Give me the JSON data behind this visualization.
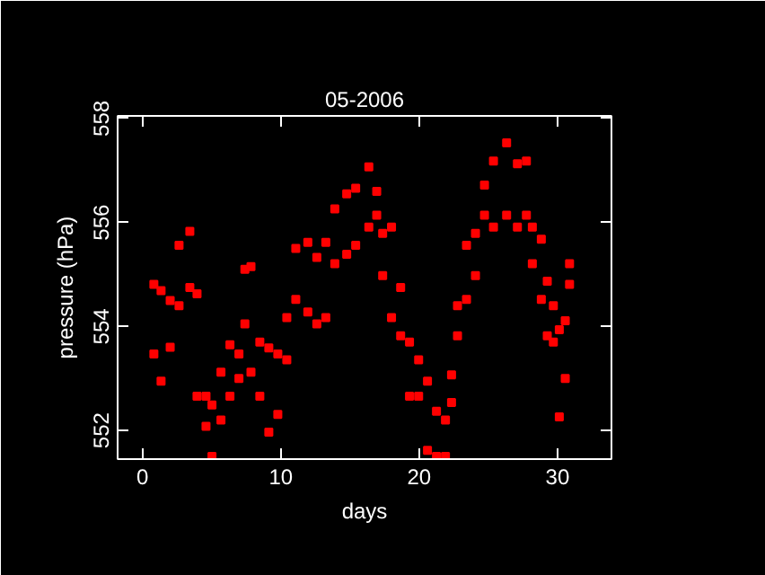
{
  "chart_data": {
    "type": "scatter",
    "title": "05-2006",
    "xlabel": "days",
    "ylabel": "pressure (hPa)",
    "xlim": [
      -1.8,
      33.9
    ],
    "ylim": [
      551.45,
      558.05
    ],
    "xticks": [
      0,
      10,
      20,
      30
    ],
    "yticks": [
      552,
      554,
      556,
      558
    ],
    "grid": false,
    "marker": "square",
    "series": [
      {
        "color": "#ff0000",
        "x": [
          0.82,
          0.82,
          1.34,
          1.34,
          2.0,
          2.0,
          2.64,
          2.64,
          3.42,
          3.42,
          3.94,
          3.94,
          4.59,
          4.59,
          5.02,
          5.02,
          5.67,
          5.67,
          6.32,
          6.32,
          6.97,
          6.97,
          7.4,
          7.4,
          7.84,
          7.84,
          8.48,
          8.48,
          9.13,
          9.13,
          9.78,
          9.78,
          10.43,
          10.43,
          11.08,
          11.08,
          11.95,
          11.95,
          12.6,
          12.6,
          13.25,
          13.25,
          13.9,
          13.9,
          14.76,
          14.76,
          15.41,
          15.41,
          16.36,
          16.36,
          16.93,
          16.93,
          17.36,
          17.36,
          18.0,
          18.0,
          18.66,
          18.66,
          19.3,
          19.3,
          19.96,
          19.96,
          20.6,
          20.6,
          21.25,
          21.25,
          21.9,
          21.9,
          22.34,
          22.34,
          22.77,
          22.77,
          23.42,
          23.42,
          24.07,
          24.07,
          24.72,
          24.72,
          25.37,
          25.37,
          26.32,
          26.32,
          27.1,
          27.1,
          27.75,
          27.75,
          28.18,
          28.18,
          28.83,
          28.83,
          29.26,
          29.26,
          29.7,
          29.7,
          30.13,
          30.13,
          30.56,
          30.56,
          30.87,
          30.87
        ],
        "values": [
          554.81,
          553.47,
          554.69,
          552.95,
          554.5,
          553.6,
          555.56,
          554.4,
          555.83,
          554.75,
          554.63,
          552.66,
          552.66,
          552.08,
          552.49,
          551.5,
          553.12,
          552.2,
          553.65,
          552.66,
          553.47,
          553.0,
          555.1,
          554.05,
          555.15,
          553.12,
          553.7,
          552.66,
          553.59,
          551.97,
          553.47,
          552.31,
          554.17,
          553.36,
          555.5,
          554.52,
          555.62,
          554.28,
          555.33,
          554.05,
          555.62,
          554.17,
          556.26,
          555.21,
          556.55,
          555.39,
          556.66,
          555.56,
          557.07,
          555.91,
          556.6,
          556.14,
          555.79,
          554.98,
          555.91,
          554.17,
          554.75,
          553.82,
          553.7,
          552.66,
          553.36,
          552.66,
          552.95,
          551.62,
          552.37,
          551.5,
          552.2,
          551.5,
          553.07,
          552.54,
          554.4,
          553.82,
          555.56,
          554.52,
          555.79,
          554.98,
          556.72,
          556.14,
          557.18,
          555.91,
          557.53,
          556.14,
          557.13,
          555.91,
          557.18,
          556.14,
          555.91,
          555.21,
          555.68,
          554.52,
          554.87,
          553.82,
          554.4,
          553.7,
          553.94,
          552.26,
          554.11,
          553.0,
          555.21,
          554.81
        ]
      }
    ]
  }
}
